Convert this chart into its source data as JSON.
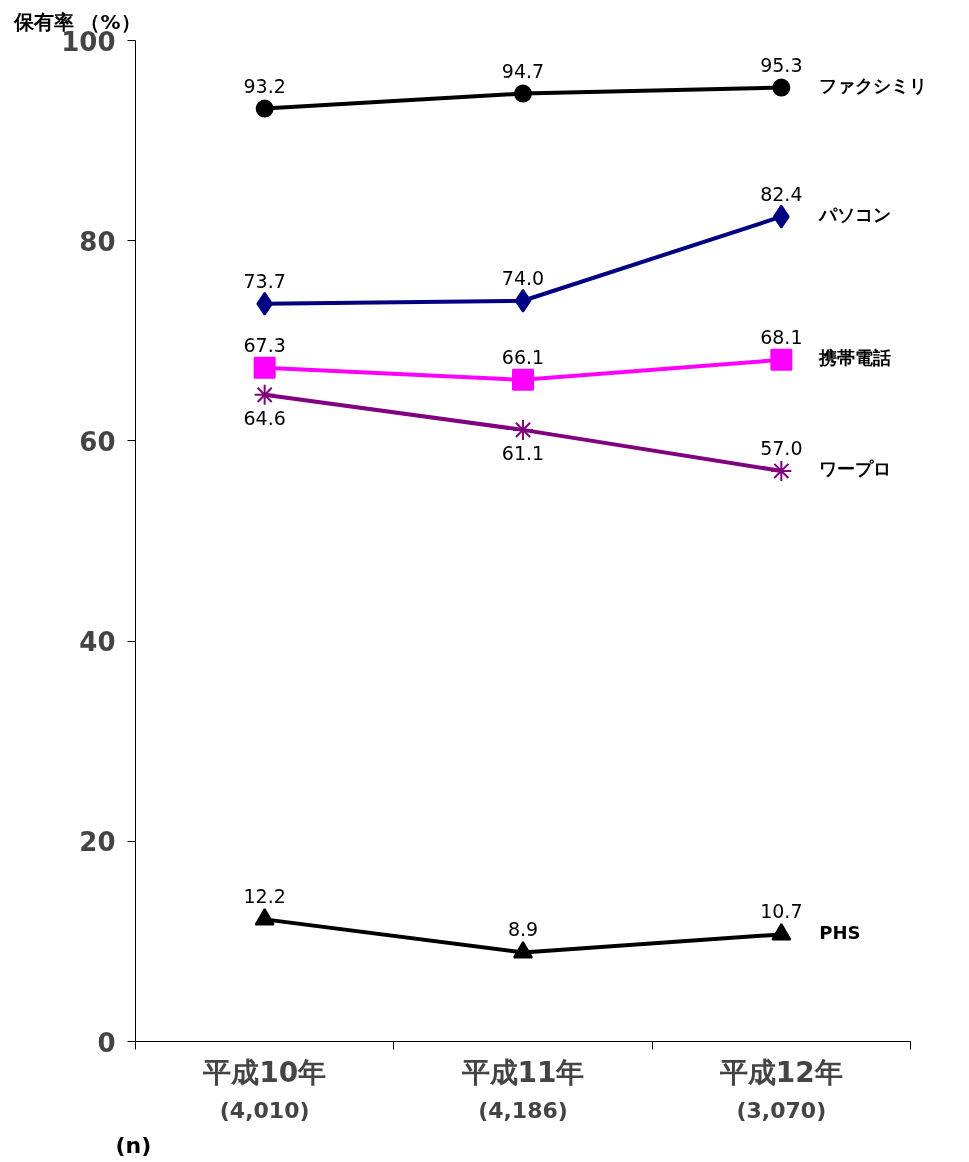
{
  "chart_data": {
    "type": "line",
    "ylabel": "保有率 （%）",
    "categories": [
      "平成10年",
      "平成11年",
      "平成12年"
    ],
    "ylim": [
      0,
      100
    ],
    "yticks": [
      0,
      20,
      40,
      60,
      80,
      100
    ],
    "grid": false,
    "line_style": "solid",
    "series": [
      {
        "name": "ファクシミリ",
        "color": "#000000",
        "marker": "circle",
        "values": [
          93.2,
          94.7,
          95.3
        ],
        "value_labels": [
          "93.2",
          "94.7",
          "95.3"
        ]
      },
      {
        "name": "パソコン",
        "color": "#000080",
        "marker": "diamond",
        "values": [
          73.7,
          74.0,
          82.4
        ],
        "value_labels": [
          "73.7",
          "74.0",
          "82.4"
        ]
      },
      {
        "name": "携帯電話",
        "color": "#ff00ff",
        "marker": "square",
        "values": [
          67.3,
          66.1,
          68.1
        ],
        "value_labels": [
          "67.3",
          "66.1",
          "68.1"
        ]
      },
      {
        "name": "ワープロ",
        "color": "#800080",
        "marker": "cross",
        "values": [
          64.6,
          61.1,
          57.0
        ],
        "value_labels": [
          "64.6",
          "61.1",
          "57.0"
        ]
      },
      {
        "name": "PHS",
        "color": "#000000",
        "marker": "triangle",
        "values": [
          12.2,
          8.9,
          10.7
        ],
        "value_labels": [
          "12.2",
          "8.9",
          "10.7"
        ]
      }
    ],
    "annotations": [
      "(n)",
      "(4,010)",
      "(4,186)",
      "(3,070)"
    ]
  }
}
